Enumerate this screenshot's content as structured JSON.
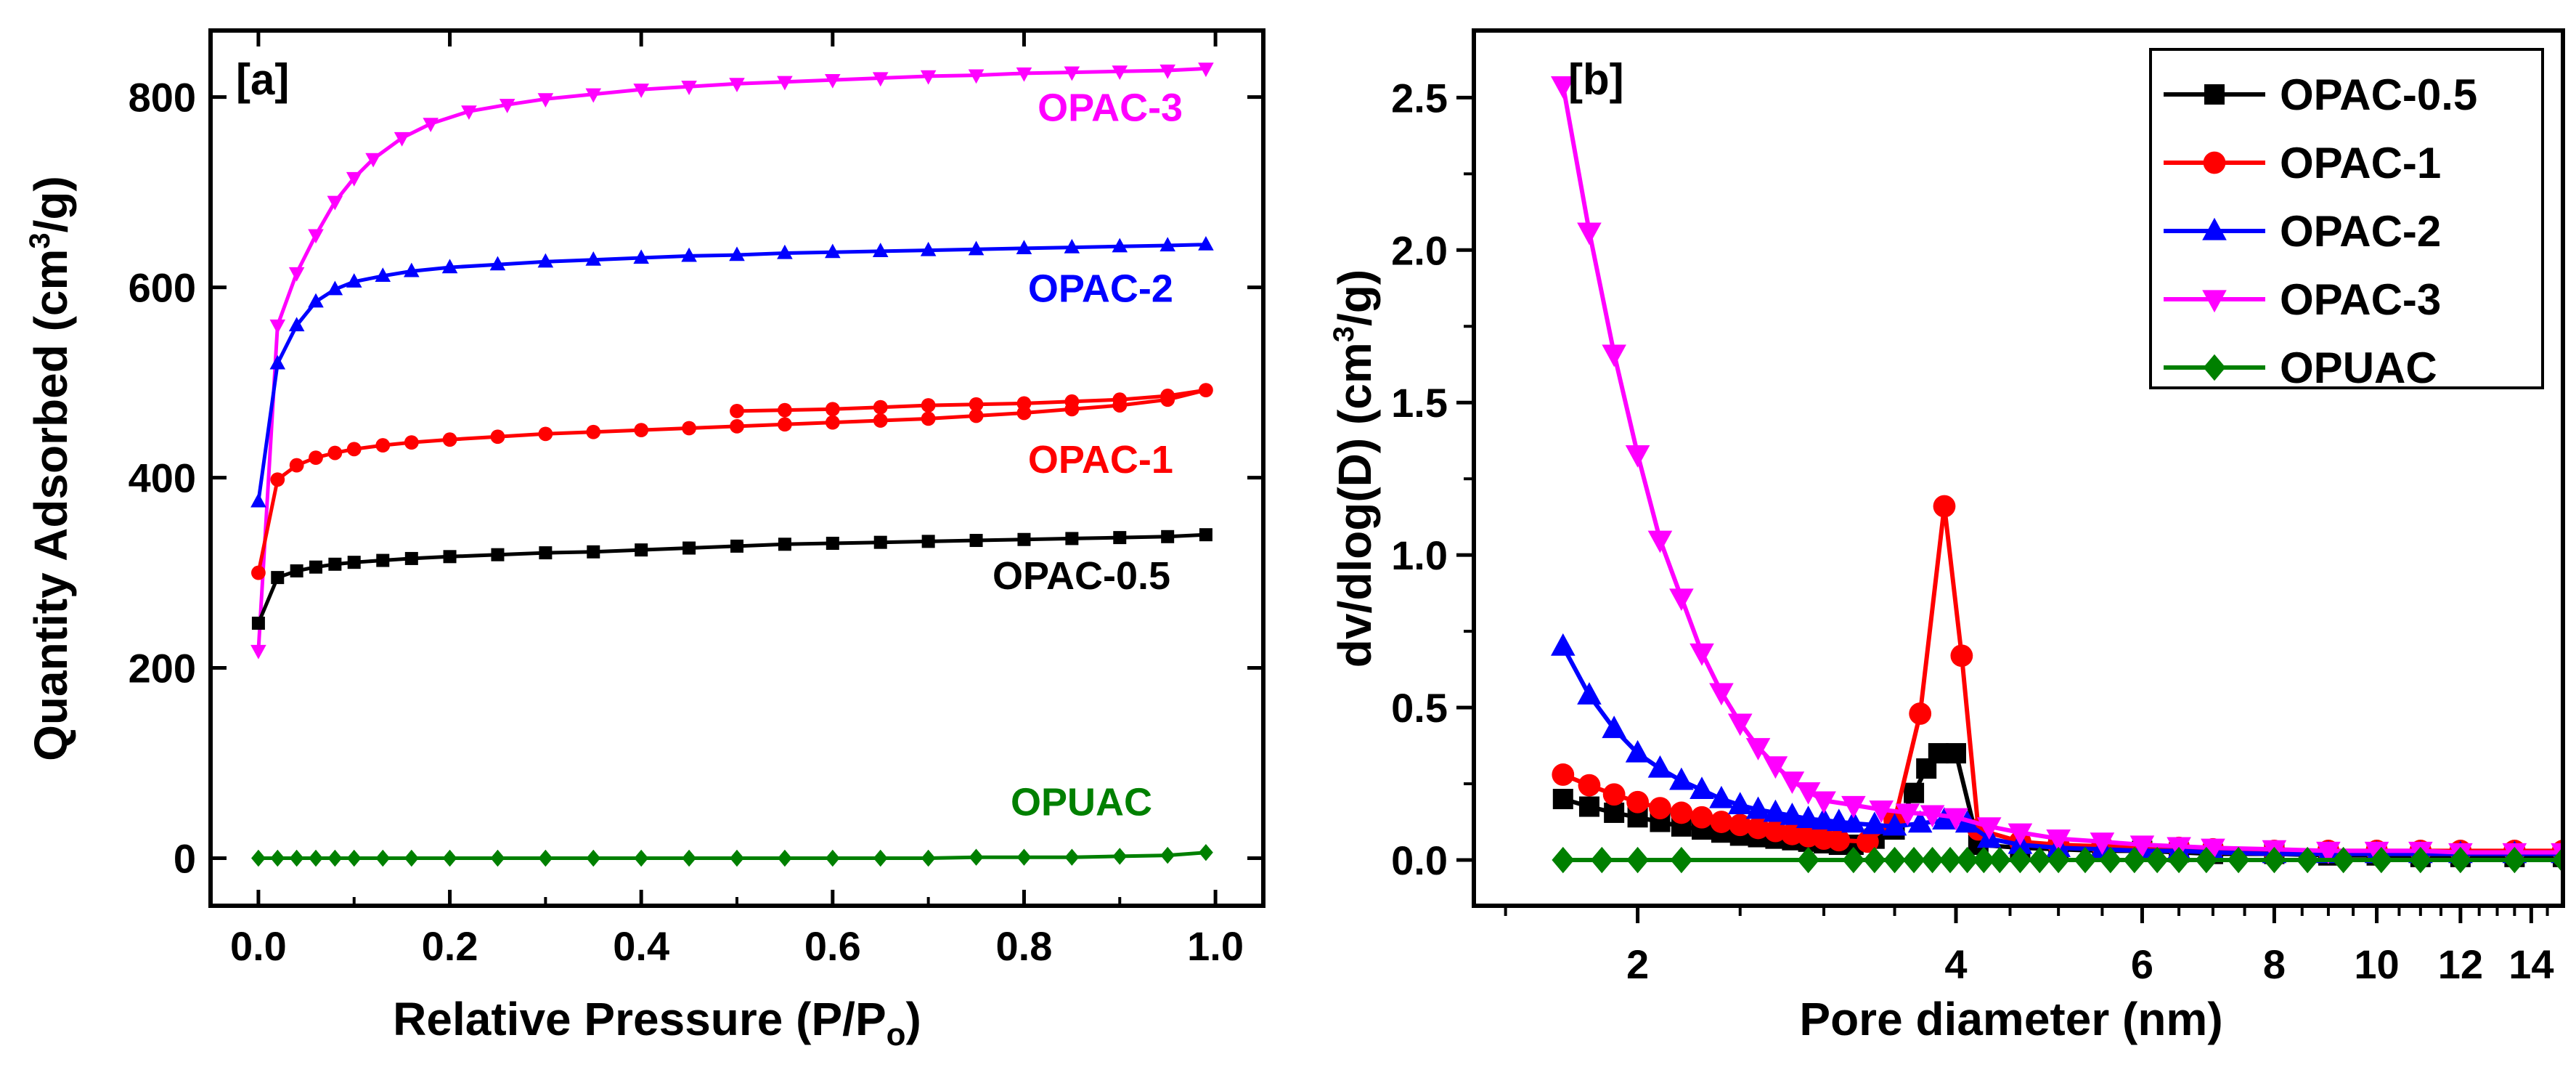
{
  "chart_data": [
    {
      "panel": "[a]",
      "type": "line",
      "xlabel": "Relative Pressure (P/P",
      "xlabel_sub": "o",
      "xlabel_end": ")",
      "ylabel": "Quantity Adsorbed (cm",
      "ylabel_sup": "3",
      "ylabel_end": "/g)",
      "xlim": [
        -0.05,
        1.05
      ],
      "ylim": [
        -50,
        870
      ],
      "xticks": [
        0.0,
        0.2,
        0.4,
        0.6,
        0.8,
        1.0
      ],
      "xtick_labels": [
        "0.0",
        "0.2",
        "0.4",
        "0.6",
        "0.8",
        "1.0"
      ],
      "yticks": [
        0,
        200,
        400,
        600,
        800
      ],
      "ytick_labels": [
        "0",
        "200",
        "400",
        "600",
        "800"
      ],
      "series": [
        {
          "name": "OPAC-3",
          "color": "#ff00ff",
          "marker": "triangle-down",
          "x": [
            0.0,
            0.02,
            0.04,
            0.06,
            0.08,
            0.1,
            0.12,
            0.15,
            0.18,
            0.22,
            0.26,
            0.3,
            0.35,
            0.4,
            0.45,
            0.5,
            0.55,
            0.6,
            0.65,
            0.7,
            0.75,
            0.8,
            0.85,
            0.9,
            0.95,
            0.99
          ],
          "y": [
            218,
            560,
            615,
            655,
            690,
            715,
            735,
            757,
            772,
            785,
            792,
            798,
            803,
            808,
            811,
            814,
            816,
            818,
            820,
            822,
            823,
            825,
            826,
            827,
            828,
            830
          ]
        },
        {
          "name": "OPAC-2",
          "color": "#0000ff",
          "marker": "triangle-up",
          "x": [
            0.0,
            0.02,
            0.04,
            0.06,
            0.08,
            0.1,
            0.13,
            0.16,
            0.2,
            0.25,
            0.3,
            0.35,
            0.4,
            0.45,
            0.5,
            0.55,
            0.6,
            0.65,
            0.7,
            0.75,
            0.8,
            0.85,
            0.9,
            0.95,
            0.99
          ],
          "y": [
            375,
            520,
            560,
            585,
            598,
            606,
            612,
            617,
            621,
            624,
            627,
            629,
            631,
            633,
            634,
            636,
            637,
            638,
            639,
            640,
            641,
            642,
            643,
            644,
            645
          ]
        },
        {
          "name": "OPAC-1",
          "color": "#ff0000",
          "marker": "circle",
          "x": [
            0.0,
            0.02,
            0.04,
            0.06,
            0.08,
            0.1,
            0.13,
            0.16,
            0.2,
            0.25,
            0.3,
            0.35,
            0.4,
            0.45,
            0.5,
            0.55,
            0.6,
            0.65,
            0.7,
            0.75,
            0.8,
            0.85,
            0.9,
            0.95,
            0.99,
            0.95,
            0.9,
            0.85,
            0.8,
            0.75,
            0.7,
            0.65,
            0.6,
            0.55,
            0.5
          ],
          "y": [
            300,
            398,
            413,
            421,
            426,
            430,
            434,
            437,
            440,
            443,
            446,
            448,
            450,
            452,
            454,
            456,
            458,
            460,
            462,
            465,
            468,
            472,
            476,
            482,
            492,
            486,
            482,
            480,
            478,
            477,
            476,
            474,
            472,
            471,
            470
          ]
        },
        {
          "name": "OPAC-0.5",
          "color": "#000000",
          "marker": "square",
          "x": [
            0.0,
            0.02,
            0.04,
            0.06,
            0.08,
            0.1,
            0.13,
            0.16,
            0.2,
            0.25,
            0.3,
            0.35,
            0.4,
            0.45,
            0.5,
            0.55,
            0.6,
            0.65,
            0.7,
            0.75,
            0.8,
            0.85,
            0.9,
            0.95,
            0.99
          ],
          "y": [
            247,
            295,
            302,
            306,
            309,
            311,
            313,
            315,
            317,
            319,
            321,
            322,
            324,
            326,
            328,
            330,
            331,
            332,
            333,
            334,
            335,
            336,
            337,
            338,
            340
          ]
        },
        {
          "name": "OPUAC",
          "color": "#008000",
          "marker": "diamond",
          "x": [
            0.0,
            0.02,
            0.04,
            0.06,
            0.08,
            0.1,
            0.13,
            0.16,
            0.2,
            0.25,
            0.3,
            0.35,
            0.4,
            0.45,
            0.5,
            0.55,
            0.6,
            0.65,
            0.7,
            0.75,
            0.8,
            0.85,
            0.9,
            0.95,
            0.99
          ],
          "y": [
            0,
            0,
            0,
            0,
            0,
            0,
            0,
            0,
            0,
            0,
            0,
            0,
            0,
            0,
            0,
            0,
            0,
            0,
            0,
            1,
            1,
            1,
            2,
            3,
            6
          ]
        }
      ],
      "annotations": [
        {
          "text": "OPAC-3",
          "color": "#ff00ff",
          "x": 0.89,
          "y": 775
        },
        {
          "text": "OPAC-2",
          "color": "#0000ff",
          "x": 0.88,
          "y": 585
        },
        {
          "text": "OPAC-1",
          "color": "#ff0000",
          "x": 0.88,
          "y": 405
        },
        {
          "text": "OPAC-0.5",
          "color": "#000000",
          "x": 0.86,
          "y": 283
        },
        {
          "text": "OPUAC",
          "color": "#008000",
          "x": 0.86,
          "y": 45
        }
      ]
    },
    {
      "panel": "[b]",
      "type": "line",
      "xscale": "log",
      "xlabel": "Pore diameter (nm)",
      "ylabel": "dv/dlog(D) (cm",
      "ylabel_sup": "3",
      "ylabel_end": "/g)",
      "xlim": [
        1.4,
        15
      ],
      "ylim": [
        -0.15,
        2.72
      ],
      "xticks_labeled": [
        2,
        4,
        6,
        8,
        10,
        12,
        14
      ],
      "xtick_labels": [
        "2",
        "4",
        "6",
        "8",
        "10",
        "12",
        "14"
      ],
      "xticks_minor": [
        1.5,
        2.5,
        3,
        3.5,
        4.5,
        5,
        5.5,
        6.5,
        7,
        7.5,
        8.5,
        9,
        9.5,
        10.5,
        11,
        11.5,
        12.5,
        13,
        13.5,
        14.5
      ],
      "yticks": [
        0.0,
        0.5,
        1.0,
        1.5,
        2.0,
        2.5
      ],
      "ytick_labels": [
        "0.0",
        "0.5",
        "1.0",
        "1.5",
        "2.0",
        "2.5"
      ],
      "legend_position": "top-right",
      "series": [
        {
          "name": "OPAC-0.5",
          "color": "#000000",
          "marker": "square",
          "x": [
            1.7,
            1.8,
            1.9,
            2.0,
            2.1,
            2.2,
            2.3,
            2.4,
            2.5,
            2.6,
            2.7,
            2.8,
            2.9,
            3.0,
            3.1,
            3.2,
            3.35,
            3.5,
            3.65,
            3.75,
            3.85,
            4.0,
            4.2,
            4.6,
            5.0,
            5.5,
            6.0,
            6.5,
            7.0,
            8.0,
            9.0,
            10.0,
            11.0,
            12.0,
            13.5,
            15.0
          ],
          "y": [
            0.2,
            0.175,
            0.155,
            0.14,
            0.125,
            0.11,
            0.1,
            0.09,
            0.08,
            0.075,
            0.07,
            0.065,
            0.06,
            0.055,
            0.05,
            0.05,
            0.07,
            0.1,
            0.22,
            0.3,
            0.35,
            0.35,
            0.05,
            0.04,
            0.035,
            0.03,
            0.03,
            0.025,
            0.02,
            0.02,
            0.015,
            0.015,
            0.01,
            0.01,
            0.01,
            0.01
          ]
        },
        {
          "name": "OPAC-1",
          "color": "#ff0000",
          "marker": "circle",
          "x": [
            1.7,
            1.8,
            1.9,
            2.0,
            2.1,
            2.2,
            2.3,
            2.4,
            2.5,
            2.6,
            2.7,
            2.8,
            2.9,
            3.0,
            3.1,
            3.3,
            3.5,
            3.7,
            3.9,
            4.05,
            4.2,
            4.6,
            5.0,
            5.5,
            6.0,
            6.5,
            7.0,
            8.0,
            9.0,
            10.0,
            11.0,
            12.0,
            13.5,
            15.0
          ],
          "y": [
            0.28,
            0.245,
            0.215,
            0.19,
            0.17,
            0.155,
            0.14,
            0.125,
            0.115,
            0.105,
            0.095,
            0.085,
            0.078,
            0.07,
            0.065,
            0.06,
            0.13,
            0.48,
            1.16,
            0.67,
            0.1,
            0.06,
            0.05,
            0.045,
            0.04,
            0.04,
            0.035,
            0.03,
            0.03,
            0.03,
            0.03,
            0.03,
            0.03,
            0.03
          ]
        },
        {
          "name": "OPAC-2",
          "color": "#0000ff",
          "marker": "triangle-up",
          "x": [
            1.7,
            1.8,
            1.9,
            2.0,
            2.1,
            2.2,
            2.3,
            2.4,
            2.5,
            2.6,
            2.7,
            2.8,
            2.9,
            3.0,
            3.1,
            3.2,
            3.35,
            3.5,
            3.7,
            3.9,
            4.1,
            4.3,
            4.6,
            5.0,
            5.5,
            6.0,
            6.5,
            7.0,
            8.0,
            9.0,
            10.0,
            11.0,
            12.0,
            13.5,
            15.0
          ],
          "y": [
            0.7,
            0.54,
            0.43,
            0.35,
            0.3,
            0.26,
            0.23,
            0.2,
            0.18,
            0.165,
            0.155,
            0.145,
            0.135,
            0.13,
            0.125,
            0.12,
            0.115,
            0.11,
            0.12,
            0.13,
            0.12,
            0.07,
            0.05,
            0.04,
            0.035,
            0.03,
            0.03,
            0.025,
            0.02,
            0.02,
            0.02,
            0.02,
            0.02,
            0.02,
            0.02
          ]
        },
        {
          "name": "OPAC-3",
          "color": "#ff00ff",
          "marker": "triangle-down",
          "x": [
            1.7,
            1.8,
            1.9,
            2.0,
            2.1,
            2.2,
            2.3,
            2.4,
            2.5,
            2.6,
            2.7,
            2.8,
            2.9,
            3.0,
            3.2,
            3.4,
            3.6,
            3.8,
            4.0,
            4.3,
            4.6,
            5.0,
            5.5,
            6.0,
            6.5,
            7.0,
            8.0,
            9.0,
            10.0,
            11.0,
            12.0,
            13.5,
            15.0
          ],
          "y": [
            2.54,
            2.06,
            1.66,
            1.33,
            1.05,
            0.86,
            0.68,
            0.55,
            0.45,
            0.37,
            0.31,
            0.26,
            0.225,
            0.195,
            0.18,
            0.165,
            0.155,
            0.15,
            0.14,
            0.11,
            0.09,
            0.07,
            0.06,
            0.05,
            0.045,
            0.04,
            0.035,
            0.03,
            0.03,
            0.03,
            0.025,
            0.025,
            0.025
          ]
        },
        {
          "name": "OPUAC",
          "color": "#008000",
          "marker": "diamond",
          "x": [
            1.7,
            1.85,
            2.0,
            2.2,
            2.9,
            3.2,
            3.35,
            3.5,
            3.65,
            3.8,
            3.95,
            4.1,
            4.25,
            4.4,
            4.6,
            4.8,
            5.0,
            5.3,
            5.6,
            5.9,
            6.2,
            6.5,
            6.9,
            7.4,
            8.0,
            8.6,
            9.3,
            10.1,
            11.0,
            12.0,
            13.5,
            15.0
          ],
          "y": [
            0.0,
            0.0,
            0.0,
            0.0,
            0.0,
            0.0,
            0.0,
            0.0,
            0.0,
            0.0,
            0.0,
            0.0,
            0.0,
            0.0,
            0.0,
            0.0,
            0.0,
            0.0,
            0.0,
            0.0,
            0.0,
            0.0,
            0.0,
            0.0,
            0.0,
            0.0,
            0.0,
            0.0,
            0.0,
            0.0,
            0.0,
            0.0
          ]
        }
      ],
      "legend": [
        "OPAC-0.5",
        "OPAC-1",
        "OPAC-2",
        "OPAC-3",
        "OPUAC"
      ]
    }
  ]
}
